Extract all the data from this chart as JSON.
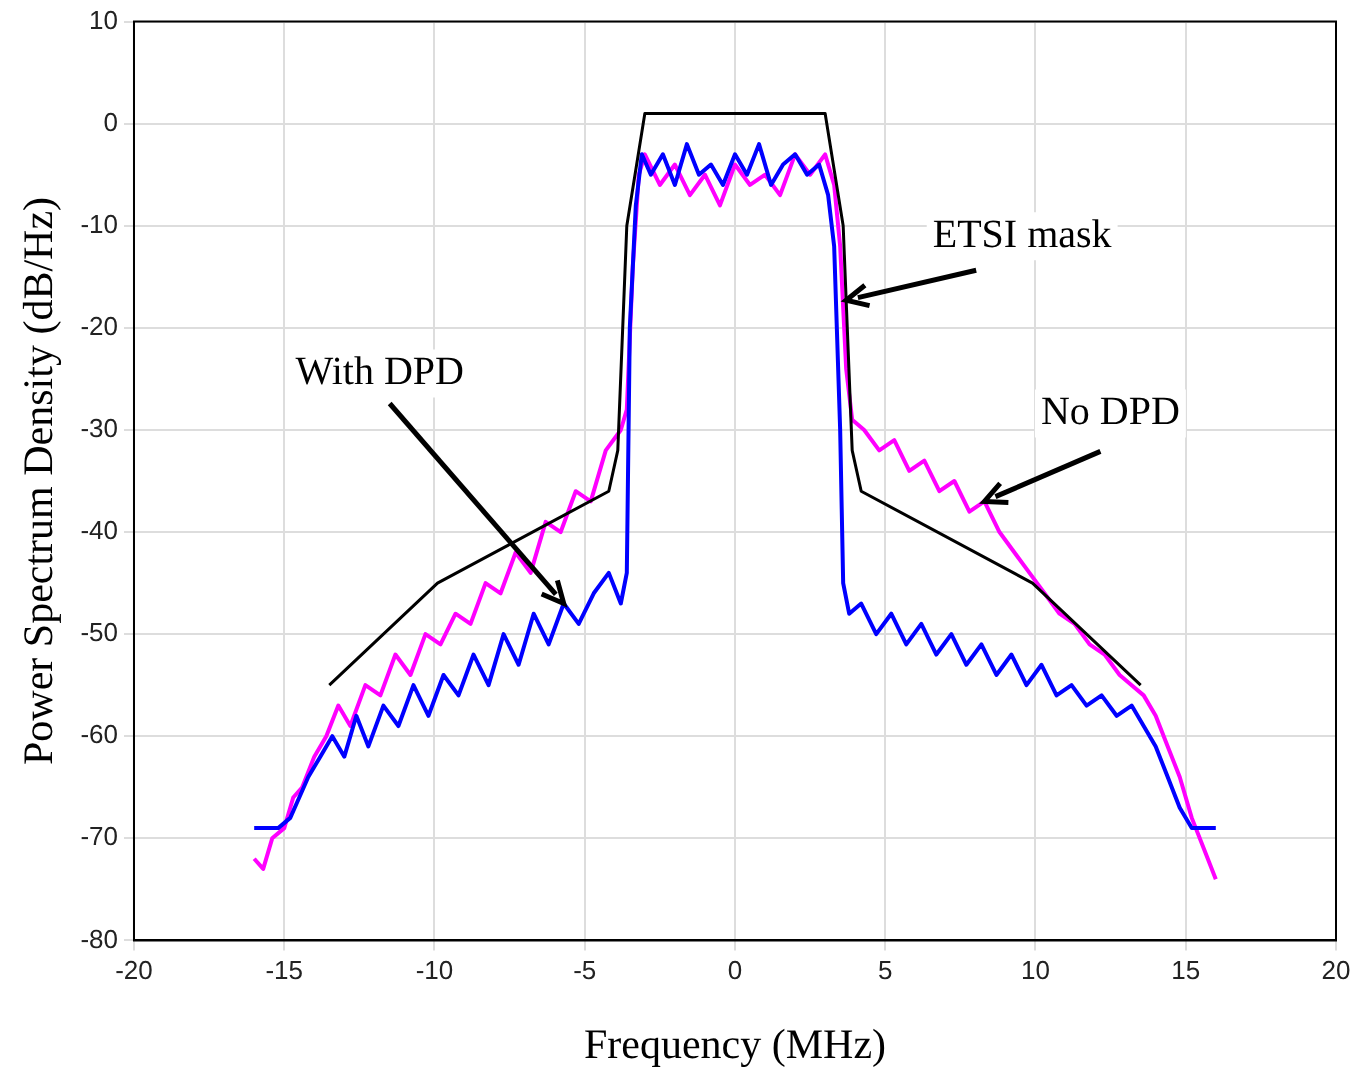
{
  "chart_data": {
    "type": "line",
    "xlabel": "Frequency (MHz)",
    "ylabel": "Power Spectrum Density (dB/Hz)",
    "xlim": [
      -20,
      20
    ],
    "xticks": [
      -20,
      -15,
      -10,
      -5,
      0,
      5,
      10,
      15,
      20
    ],
    "ylim": [
      -80,
      10
    ],
    "yticks": [
      -80,
      -70,
      -60,
      -50,
      -40,
      -30,
      -20,
      -10,
      0,
      10
    ],
    "grid": true,
    "legend": false,
    "marker": "none",
    "line_style": "solid",
    "series": [
      {
        "color": "#ff00ff",
        "x": [
          -16,
          -15.7,
          -15.4,
          -15,
          -14.7,
          -14.4,
          -14,
          -13.6,
          -13.2,
          -12.8,
          -12.3,
          -11.8,
          -11.3,
          -10.8,
          -10.3,
          -9.8,
          -9.3,
          -8.8,
          -8.3,
          -7.8,
          -7.3,
          -6.8,
          -6.3,
          -5.8,
          -5.3,
          -4.8,
          -4.3,
          -3.8,
          -3.6,
          -3.4,
          -3.2,
          -3,
          -2.5,
          -2,
          -1.5,
          -1,
          -0.5,
          0,
          0.5,
          1,
          1.5,
          2,
          2.5,
          3,
          3.3,
          3.5,
          3.7,
          3.9,
          4.3,
          4.8,
          5.3,
          5.8,
          6.3,
          6.8,
          7.3,
          7.8,
          8.3,
          8.8,
          9.3,
          9.8,
          10.3,
          10.8,
          11.3,
          11.8,
          12.3,
          12.8,
          13.2,
          13.6,
          14,
          14.4,
          14.8,
          15.2,
          15.6,
          16
        ],
        "values": [
          -72,
          -73,
          -70,
          -69,
          -66,
          -65,
          -62,
          -60,
          -57,
          -59,
          -55,
          -56,
          -52,
          -54,
          -50,
          -51,
          -48,
          -49,
          -45,
          -46,
          -42,
          -44,
          -39,
          -40,
          -36,
          -37,
          -32,
          -30,
          -28,
          -14,
          -5,
          -3,
          -6,
          -4,
          -7,
          -5,
          -8,
          -4,
          -6,
          -5,
          -7,
          -3,
          -5,
          -3,
          -6,
          -12,
          -24,
          -29,
          -30,
          -32,
          -31,
          -34,
          -33,
          -36,
          -35,
          -38,
          -37,
          -40,
          -42,
          -44,
          -46,
          -48,
          -49,
          -51,
          -52,
          -54,
          -55,
          -56,
          -58,
          -61,
          -64,
          -68,
          -71,
          -74
        ]
      },
      {
        "color": "#0000ff",
        "x": [
          -16,
          -15.2,
          -14.8,
          -14.5,
          -14.2,
          -13.8,
          -13.4,
          -13,
          -12.6,
          -12.2,
          -11.7,
          -11.2,
          -10.7,
          -10.2,
          -9.7,
          -9.2,
          -8.7,
          -8.2,
          -7.7,
          -7.2,
          -6.7,
          -6.2,
          -5.7,
          -5.2,
          -4.7,
          -4.2,
          -3.8,
          -3.6,
          -3.5,
          -3.3,
          -3.1,
          -2.8,
          -2.4,
          -2,
          -1.6,
          -1.2,
          -0.8,
          -0.4,
          0,
          0.4,
          0.8,
          1.2,
          1.6,
          2,
          2.4,
          2.8,
          3.1,
          3.3,
          3.5,
          3.6,
          3.8,
          4.2,
          4.7,
          5.2,
          5.7,
          6.2,
          6.7,
          7.2,
          7.7,
          8.2,
          8.7,
          9.2,
          9.7,
          10.2,
          10.7,
          11.2,
          11.7,
          12.2,
          12.7,
          13.2,
          13.6,
          14,
          14.4,
          14.8,
          15.2,
          16
        ],
        "values": [
          -69,
          -69,
          -68,
          -66,
          -64,
          -62,
          -60,
          -62,
          -58,
          -61,
          -57,
          -59,
          -55,
          -58,
          -54,
          -56,
          -52,
          -55,
          -50,
          -53,
          -48,
          -51,
          -47,
          -49,
          -46,
          -44,
          -47,
          -44,
          -20,
          -8,
          -3,
          -5,
          -3,
          -6,
          -2,
          -5,
          -4,
          -6,
          -3,
          -5,
          -2,
          -6,
          -4,
          -3,
          -5,
          -4,
          -7,
          -12,
          -30,
          -45,
          -48,
          -47,
          -50,
          -48,
          -51,
          -49,
          -52,
          -50,
          -53,
          -51,
          -54,
          -52,
          -55,
          -53,
          -56,
          -55,
          -57,
          -56,
          -58,
          -57,
          -59,
          -61,
          -64,
          -67,
          -69,
          -69
        ]
      },
      {
        "color": "#000000",
        "x": [
          -13.5,
          -9.9,
          -4.2,
          -3.9,
          -3.6,
          -3,
          3,
          3.6,
          3.9,
          4.2,
          9.9,
          13.5
        ],
        "values": [
          -55,
          -45,
          -36,
          -32,
          -10,
          1,
          1,
          -10,
          -32,
          -36,
          -45,
          -55
        ]
      }
    ],
    "annotations": [
      {
        "text": "With DPD",
        "x": -5.7,
        "y": -47
      },
      {
        "text": "ETSI mask",
        "x": 3.7,
        "y": -17.3
      },
      {
        "text": "No DPD",
        "x": 8.3,
        "y": -37
      }
    ]
  }
}
